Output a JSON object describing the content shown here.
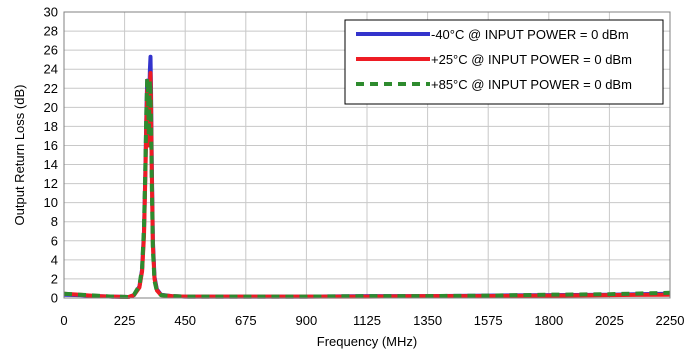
{
  "chart_data": {
    "type": "line",
    "title": "",
    "xlabel": "Frequency (MHz)",
    "ylabel": "Output Return  Loss (dB)",
    "xlim": [
      0,
      2250
    ],
    "ylim": [
      0,
      30
    ],
    "x_ticks": [
      "0",
      "225",
      "450",
      "675",
      "900",
      "1125",
      "1350",
      "1575",
      "1800",
      "2025",
      "2250"
    ],
    "y_ticks": [
      "0",
      "2",
      "4",
      "6",
      "8",
      "10",
      "12",
      "14",
      "16",
      "18",
      "20",
      "22",
      "24",
      "26",
      "28",
      "30"
    ],
    "grid": true,
    "legend_position": "top-right",
    "series": [
      {
        "name": "-40°C @ INPUT POWER = 0 dBm",
        "color": "#3333cc",
        "style": "solid",
        "points": [
          [
            0,
            0.35
          ],
          [
            60,
            0.3
          ],
          [
            120,
            0.2
          ],
          [
            180,
            0.15
          ],
          [
            240,
            0.1
          ],
          [
            260,
            0.3
          ],
          [
            280,
            1.2
          ],
          [
            290,
            3.0
          ],
          [
            297,
            7.0
          ],
          [
            302,
            13.0
          ],
          [
            306,
            19.5
          ],
          [
            309,
            22.8
          ],
          [
            312,
            21.0
          ],
          [
            315,
            18.0
          ],
          [
            317,
            21.5
          ],
          [
            319,
            24.0
          ],
          [
            321,
            25.3
          ],
          [
            323,
            22.0
          ],
          [
            326,
            14.0
          ],
          [
            330,
            6.0
          ],
          [
            336,
            2.2
          ],
          [
            345,
            0.9
          ],
          [
            360,
            0.35
          ],
          [
            400,
            0.2
          ],
          [
            450,
            0.15
          ],
          [
            675,
            0.15
          ],
          [
            900,
            0.15
          ],
          [
            1125,
            0.2
          ],
          [
            1350,
            0.2
          ],
          [
            1575,
            0.25
          ],
          [
            1800,
            0.3
          ],
          [
            2025,
            0.35
          ],
          [
            2250,
            0.45
          ]
        ]
      },
      {
        "name": "+25°C @ INPUT POWER = 0 dBm",
        "color": "#ee1c24",
        "style": "solid",
        "points": [
          [
            0,
            0.45
          ],
          [
            60,
            0.35
          ],
          [
            120,
            0.2
          ],
          [
            180,
            0.15
          ],
          [
            240,
            0.1
          ],
          [
            260,
            0.3
          ],
          [
            280,
            1.1
          ],
          [
            290,
            2.8
          ],
          [
            297,
            6.5
          ],
          [
            302,
            12.5
          ],
          [
            306,
            18.5
          ],
          [
            309,
            21.8
          ],
          [
            312,
            20.5
          ],
          [
            315,
            16.0
          ],
          [
            317,
            19.5
          ],
          [
            319,
            22.5
          ],
          [
            321,
            23.6
          ],
          [
            323,
            20.5
          ],
          [
            326,
            13.0
          ],
          [
            330,
            5.5
          ],
          [
            336,
            2.0
          ],
          [
            345,
            0.8
          ],
          [
            360,
            0.3
          ],
          [
            400,
            0.2
          ],
          [
            450,
            0.15
          ],
          [
            675,
            0.15
          ],
          [
            900,
            0.15
          ],
          [
            1125,
            0.15
          ],
          [
            1350,
            0.2
          ],
          [
            1575,
            0.2
          ],
          [
            1800,
            0.25
          ],
          [
            2025,
            0.3
          ],
          [
            2250,
            0.35
          ]
        ]
      },
      {
        "name": "+85°C @ INPUT POWER = 0 dBm",
        "color": "#2e8b2e",
        "style": "dashed",
        "points": [
          [
            0,
            0.45
          ],
          [
            60,
            0.35
          ],
          [
            120,
            0.25
          ],
          [
            180,
            0.15
          ],
          [
            240,
            0.1
          ],
          [
            260,
            0.35
          ],
          [
            280,
            1.3
          ],
          [
            290,
            3.2
          ],
          [
            297,
            7.5
          ],
          [
            302,
            13.5
          ],
          [
            306,
            19.8
          ],
          [
            309,
            23.0
          ],
          [
            312,
            21.8
          ],
          [
            315,
            17.0
          ],
          [
            317,
            20.5
          ],
          [
            319,
            22.8
          ],
          [
            321,
            21.5
          ],
          [
            323,
            18.5
          ],
          [
            326,
            12.0
          ],
          [
            330,
            5.0
          ],
          [
            336,
            1.8
          ],
          [
            345,
            0.7
          ],
          [
            360,
            0.3
          ],
          [
            400,
            0.2
          ],
          [
            450,
            0.15
          ],
          [
            675,
            0.15
          ],
          [
            900,
            0.15
          ],
          [
            1125,
            0.2
          ],
          [
            1350,
            0.2
          ],
          [
            1575,
            0.25
          ],
          [
            1800,
            0.35
          ],
          [
            2025,
            0.4
          ],
          [
            2250,
            0.55
          ]
        ]
      }
    ]
  }
}
